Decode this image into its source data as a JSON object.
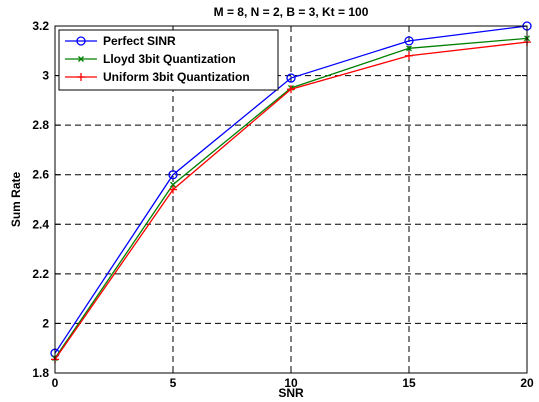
{
  "chart_data": {
    "type": "line",
    "title": "M = 8, N = 2, B = 3, Kt = 100",
    "xlabel": "SNR",
    "ylabel": "Sum Rate",
    "xlim": [
      0,
      20
    ],
    "ylim": [
      1.8,
      3.2
    ],
    "x_ticks": [
      0,
      5,
      10,
      15,
      20
    ],
    "x_tick_labels": [
      "0",
      "5",
      "10",
      "15",
      "20"
    ],
    "y_ticks": [
      1.8,
      2.0,
      2.2,
      2.4,
      2.6,
      2.8,
      3.0,
      3.2
    ],
    "y_tick_labels": [
      "1.8",
      "2",
      "2.2",
      "2.4",
      "2.6",
      "2.8",
      "3",
      "3.2"
    ],
    "grid": true,
    "legend_position": "top-left",
    "x": [
      0,
      5,
      10,
      15,
      20
    ],
    "series": [
      {
        "name": "Perfect SINR",
        "color": "#0000ff",
        "marker": "circle",
        "values": [
          1.88,
          2.6,
          2.99,
          3.14,
          3.2
        ]
      },
      {
        "name": "Lloyd 3bit Quantization",
        "color": "#008000",
        "marker": "x",
        "values": [
          1.86,
          2.56,
          2.95,
          3.11,
          3.15
        ]
      },
      {
        "name": "Uniform 3bit Quantization",
        "color": "#ff0000",
        "marker": "plus",
        "values": [
          1.855,
          2.54,
          2.945,
          3.08,
          3.135
        ]
      }
    ]
  }
}
